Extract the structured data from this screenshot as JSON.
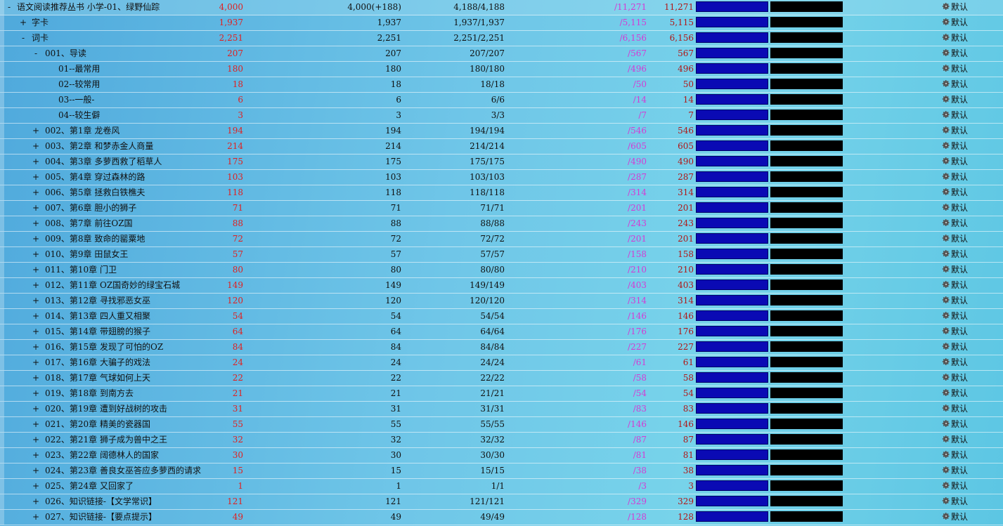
{
  "gear_icon": "gear-icon",
  "colors": {
    "new_count": "#e02020",
    "total_ratio": "#d43ad4",
    "total": "#b01616",
    "progress_fill": "#0a0ab4",
    "progress_bg": "#000000"
  },
  "rows": [
    {
      "toggle": "-",
      "name": "语文阅读推荐丛书 小学-01、绿野仙踪",
      "indent": 0,
      "new": "4,000",
      "a": "4,000(+188)",
      "b": "4,188/4,188",
      "c": "/11,271",
      "d": "11,271",
      "option": "默认"
    },
    {
      "toggle": "+",
      "name": "字卡",
      "indent": 1,
      "new": "1,937",
      "a": "1,937",
      "b": "1,937/1,937",
      "c": "/5,115",
      "d": "5,115",
      "option": "默认"
    },
    {
      "toggle": "-",
      "name": "词卡",
      "indent": 1,
      "new": "2,251",
      "a": "2,251",
      "b": "2,251/2,251",
      "c": "/6,156",
      "d": "6,156",
      "option": "默认"
    },
    {
      "toggle": "-",
      "name": "001、导读",
      "indent": 2,
      "new": "207",
      "a": "207",
      "b": "207/207",
      "c": "/567",
      "d": "567",
      "option": "默认"
    },
    {
      "toggle": "",
      "name": "01--最常用",
      "indent": 3,
      "new": "180",
      "a": "180",
      "b": "180/180",
      "c": "/496",
      "d": "496",
      "option": "默认"
    },
    {
      "toggle": "",
      "name": "02--较常用",
      "indent": 3,
      "new": "18",
      "a": "18",
      "b": "18/18",
      "c": "/50",
      "d": "50",
      "option": "默认"
    },
    {
      "toggle": "",
      "name": "03--一般-",
      "indent": 3,
      "new": "6",
      "a": "6",
      "b": "6/6",
      "c": "/14",
      "d": "14",
      "option": "默认"
    },
    {
      "toggle": "",
      "name": "04--较生僻",
      "indent": 3,
      "new": "3",
      "a": "3",
      "b": "3/3",
      "c": "/7",
      "d": "7",
      "option": "默认"
    },
    {
      "toggle": "+",
      "name": "002、第1章 龙卷风",
      "indent": 2,
      "new": "194",
      "a": "194",
      "b": "194/194",
      "c": "/546",
      "d": "546",
      "option": "默认"
    },
    {
      "toggle": "+",
      "name": "003、第2章 和梦赤金人商量",
      "indent": 2,
      "new": "214",
      "a": "214",
      "b": "214/214",
      "c": "/605",
      "d": "605",
      "option": "默认"
    },
    {
      "toggle": "+",
      "name": "004、第3章 多萝西救了稻草人",
      "indent": 2,
      "new": "175",
      "a": "175",
      "b": "175/175",
      "c": "/490",
      "d": "490",
      "option": "默认"
    },
    {
      "toggle": "+",
      "name": "005、第4章 穿过森林的路",
      "indent": 2,
      "new": "103",
      "a": "103",
      "b": "103/103",
      "c": "/287",
      "d": "287",
      "option": "默认"
    },
    {
      "toggle": "+",
      "name": "006、第5章 拯救白铁樵夫",
      "indent": 2,
      "new": "118",
      "a": "118",
      "b": "118/118",
      "c": "/314",
      "d": "314",
      "option": "默认"
    },
    {
      "toggle": "+",
      "name": "007、第6章 胆小的狮子",
      "indent": 2,
      "new": "71",
      "a": "71",
      "b": "71/71",
      "c": "/201",
      "d": "201",
      "option": "默认"
    },
    {
      "toggle": "+",
      "name": "008、第7章 前往OZ国",
      "indent": 2,
      "new": "88",
      "a": "88",
      "b": "88/88",
      "c": "/243",
      "d": "243",
      "option": "默认"
    },
    {
      "toggle": "+",
      "name": "009、第8章 致命的罂粟地",
      "indent": 2,
      "new": "72",
      "a": "72",
      "b": "72/72",
      "c": "/201",
      "d": "201",
      "option": "默认"
    },
    {
      "toggle": "+",
      "name": "010、第9章 田鼠女王",
      "indent": 2,
      "new": "57",
      "a": "57",
      "b": "57/57",
      "c": "/158",
      "d": "158",
      "option": "默认"
    },
    {
      "toggle": "+",
      "name": "011、第10章 门卫",
      "indent": 2,
      "new": "80",
      "a": "80",
      "b": "80/80",
      "c": "/210",
      "d": "210",
      "option": "默认"
    },
    {
      "toggle": "+",
      "name": "012、第11章 OZ国奇妙的绿宝石城",
      "indent": 2,
      "new": "149",
      "a": "149",
      "b": "149/149",
      "c": "/403",
      "d": "403",
      "option": "默认"
    },
    {
      "toggle": "+",
      "name": "013、第12章 寻找邪恶女巫",
      "indent": 2,
      "new": "120",
      "a": "120",
      "b": "120/120",
      "c": "/314",
      "d": "314",
      "option": "默认"
    },
    {
      "toggle": "+",
      "name": "014、第13章 四人重又相聚",
      "indent": 2,
      "new": "54",
      "a": "54",
      "b": "54/54",
      "c": "/146",
      "d": "146",
      "option": "默认"
    },
    {
      "toggle": "+",
      "name": "015、第14章 带翅膀的猴子",
      "indent": 2,
      "new": "64",
      "a": "64",
      "b": "64/64",
      "c": "/176",
      "d": "176",
      "option": "默认"
    },
    {
      "toggle": "+",
      "name": "016、第15章 发现了可怕的OZ",
      "indent": 2,
      "new": "84",
      "a": "84",
      "b": "84/84",
      "c": "/227",
      "d": "227",
      "option": "默认"
    },
    {
      "toggle": "+",
      "name": "017、第16章 大骗子的戏法",
      "indent": 2,
      "new": "24",
      "a": "24",
      "b": "24/24",
      "c": "/61",
      "d": "61",
      "option": "默认"
    },
    {
      "toggle": "+",
      "name": "018、第17章 气球如何上天",
      "indent": 2,
      "new": "22",
      "a": "22",
      "b": "22/22",
      "c": "/58",
      "d": "58",
      "option": "默认"
    },
    {
      "toggle": "+",
      "name": "019、第18章 到南方去",
      "indent": 2,
      "new": "21",
      "a": "21",
      "b": "21/21",
      "c": "/54",
      "d": "54",
      "option": "默认"
    },
    {
      "toggle": "+",
      "name": "020、第19章 遭到好战树的攻击",
      "indent": 2,
      "new": "31",
      "a": "31",
      "b": "31/31",
      "c": "/83",
      "d": "83",
      "option": "默认"
    },
    {
      "toggle": "+",
      "name": "021、第20章 精美的瓷器国",
      "indent": 2,
      "new": "55",
      "a": "55",
      "b": "55/55",
      "c": "/146",
      "d": "146",
      "option": "默认"
    },
    {
      "toggle": "+",
      "name": "022、第21章 狮子成为兽中之王",
      "indent": 2,
      "new": "32",
      "a": "32",
      "b": "32/32",
      "c": "/87",
      "d": "87",
      "option": "默认"
    },
    {
      "toggle": "+",
      "name": "023、第22章 阔德林人的国家",
      "indent": 2,
      "new": "30",
      "a": "30",
      "b": "30/30",
      "c": "/81",
      "d": "81",
      "option": "默认"
    },
    {
      "toggle": "+",
      "name": "024、第23章 善良女巫答应多萝西的请求",
      "indent": 2,
      "new": "15",
      "a": "15",
      "b": "15/15",
      "c": "/38",
      "d": "38",
      "option": "默认"
    },
    {
      "toggle": "+",
      "name": "025、第24章 又回家了",
      "indent": 2,
      "new": "1",
      "a": "1",
      "b": "1/1",
      "c": "/3",
      "d": "3",
      "option": "默认"
    },
    {
      "toggle": "+",
      "name": "026、知识链接-【文学常识】",
      "indent": 2,
      "new": "121",
      "a": "121",
      "b": "121/121",
      "c": "/329",
      "d": "329",
      "option": "默认"
    },
    {
      "toggle": "+",
      "name": "027、知识链接-【要点提示】",
      "indent": 2,
      "new": "49",
      "a": "49",
      "b": "49/49",
      "c": "/128",
      "d": "128",
      "option": "默认"
    }
  ]
}
